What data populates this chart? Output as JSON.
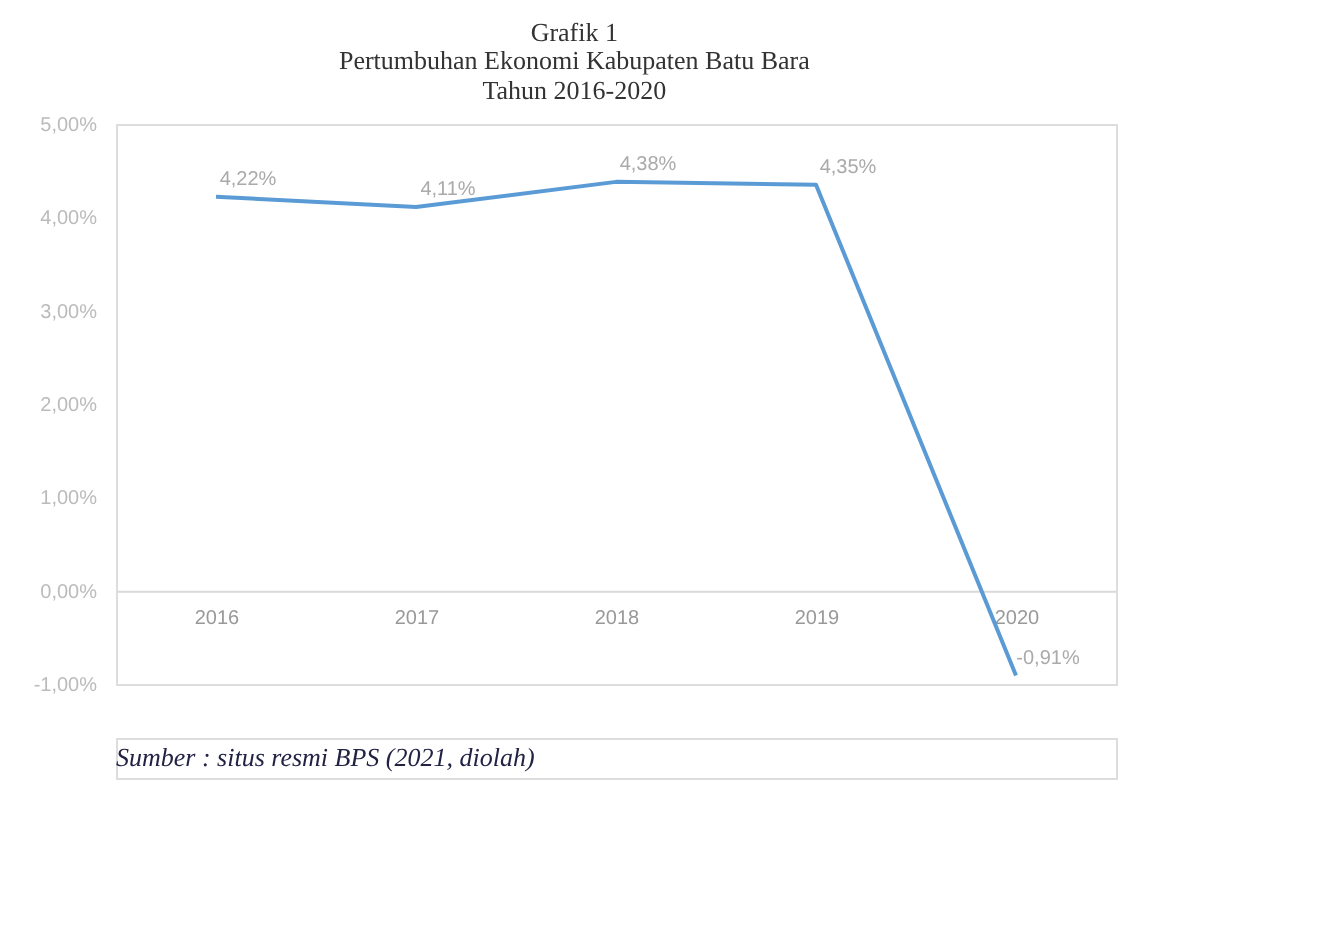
{
  "chart_data": {
    "type": "line",
    "title": "Grafik 1",
    "subtitle": "Pertumbuhan Ekonomi Kabupaten Batu Bara\nTahun 2016-2020",
    "categories": [
      "2016",
      "2017",
      "2018",
      "2019",
      "2020"
    ],
    "series": [
      {
        "color": "#5b9bd5",
        "values": [
          4.22,
          4.11,
          4.38,
          4.35,
          -0.91
        ],
        "value_labels": [
          "4,22%",
          "4,11%",
          "4,38%",
          "4,35%",
          "-0,91%"
        ]
      }
    ],
    "ylim": [
      -1,
      5
    ],
    "yticks": [
      {
        "value": -1,
        "label": "-1,00%"
      },
      {
        "value": 0,
        "label": "0,00%"
      },
      {
        "value": 1,
        "label": "1,00%"
      },
      {
        "value": 2,
        "label": "2,00%"
      },
      {
        "value": 3,
        "label": "3,00%"
      },
      {
        "value": 4,
        "label": "4,00%"
      },
      {
        "value": 5,
        "label": "5,00%"
      }
    ],
    "grid": false,
    "marker": "none",
    "line_style": "solid",
    "annotations": [
      "Sumber : situs resmi BPS (2021, diolah)"
    ]
  }
}
